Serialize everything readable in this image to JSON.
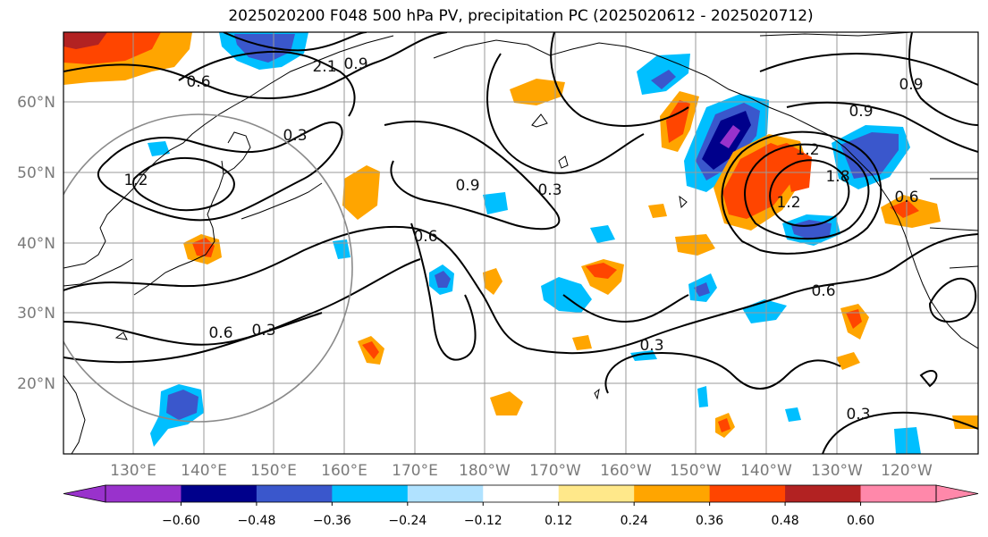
{
  "title": "2025020200 F048 500 hPa PV, precipitation PC (2025020612 - 2025020712)",
  "lat_labels": [
    "60°N",
    "50°N",
    "40°N",
    "30°N",
    "20°N"
  ],
  "lon_labels": [
    "130°E",
    "140°E",
    "150°E",
    "160°E",
    "170°E",
    "180°W",
    "170°W",
    "160°W",
    "150°W",
    "140°W",
    "130°W",
    "120°W"
  ],
  "colorbar": {
    "colors": [
      "#9932cc",
      "#00008b",
      "#3a57cc",
      "#00bfff",
      "#b0e2ff",
      "#ffffff",
      "#ffe88a",
      "#ffa500",
      "#ff4500",
      "#b22222",
      "#ff88aa"
    ],
    "ticks": [
      "−0.60",
      "−0.48",
      "−0.36",
      "−0.24",
      "−0.12",
      "0.12",
      "0.24",
      "0.36",
      "0.48",
      "0.60"
    ]
  },
  "contour_labels": [
    "0.6",
    "2.1",
    "0.9",
    "0.3",
    "1.2",
    "0.9",
    "0.3",
    "0.6",
    "0.6",
    "0.3",
    "0.9",
    "1.2",
    "1.8",
    "1.2",
    "0.6",
    "0.6",
    "0.3",
    "0.3",
    "0.9"
  ]
}
